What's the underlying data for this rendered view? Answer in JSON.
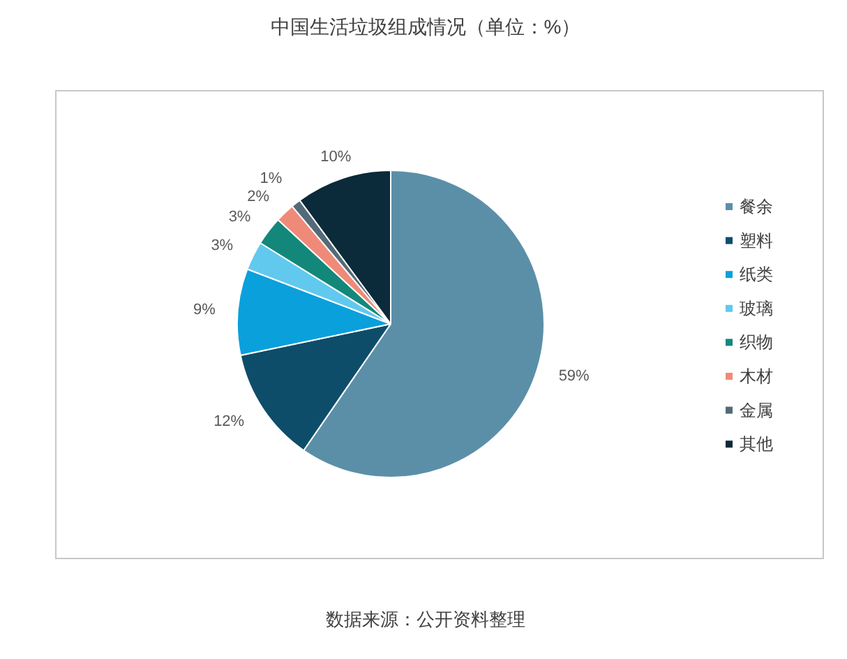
{
  "chart_data": {
    "type": "pie",
    "title": "中国生活垃圾组成情况（单位：%）",
    "categories": [
      "餐余",
      "塑料",
      "纸类",
      "玻璃",
      "织物",
      "木材",
      "金属",
      "其他"
    ],
    "values": [
      59,
      12,
      9,
      3,
      3,
      2,
      1,
      10
    ],
    "colors": [
      "#5b8fa8",
      "#0e4d6a",
      "#0aa0dc",
      "#61c9ee",
      "#13887a",
      "#ef8a78",
      "#546a78",
      "#0b2a3a"
    ],
    "value_labels": [
      "59%",
      "12%",
      "9%",
      "3%",
      "3%",
      "2%",
      "1%",
      "10%"
    ],
    "legend": "right",
    "annotations": [
      "数据来源：公开资料整理"
    ]
  }
}
